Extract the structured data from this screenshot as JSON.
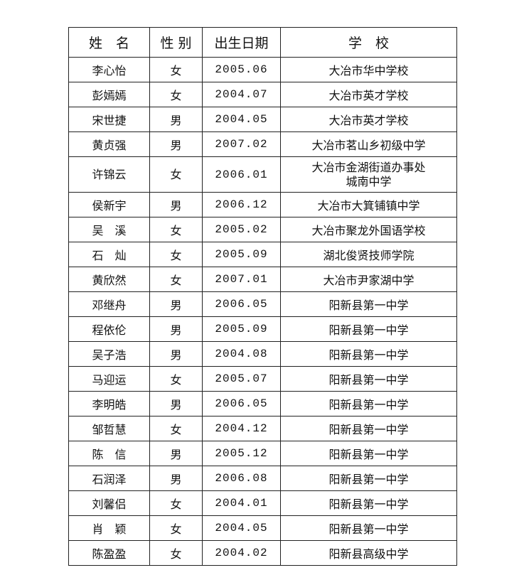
{
  "headers": [
    "姓　名",
    "性 别",
    "出生日期",
    "学　校"
  ],
  "rows": [
    {
      "name": "李心怡",
      "gender": "女",
      "birth": "2005.06",
      "school": "大冶市华中学校"
    },
    {
      "name": "彭嫣嫣",
      "gender": "女",
      "birth": "2004.07",
      "school": "大冶市英才学校"
    },
    {
      "name": "宋世捷",
      "gender": "男",
      "birth": "2004.05",
      "school": "大冶市英才学校"
    },
    {
      "name": "黄贞强",
      "gender": "男",
      "birth": "2007.02",
      "school": "大冶市茗山乡初级中学"
    },
    {
      "name": "许锦云",
      "gender": "女",
      "birth": "2006.01",
      "school": "大冶市金湖街道办事处",
      "school_line2": "城南中学"
    },
    {
      "name": "侯新宇",
      "gender": "男",
      "birth": "2006.12",
      "school": "大冶市大箕铺镇中学"
    },
    {
      "name": "吴　溪",
      "gender": "女",
      "birth": "2005.02",
      "school": "大冶市聚龙外国语学校"
    },
    {
      "name": "石　灿",
      "gender": "女",
      "birth": "2005.09",
      "school": "湖北俊贤技师学院"
    },
    {
      "name": "黄欣然",
      "gender": "女",
      "birth": "2007.01",
      "school": "大冶市尹家湖中学"
    },
    {
      "name": "邓继舟",
      "gender": "男",
      "birth": "2006.05",
      "school": "阳新县第一中学"
    },
    {
      "name": "程依伦",
      "gender": "男",
      "birth": "2005.09",
      "school": "阳新县第一中学"
    },
    {
      "name": "吴子浩",
      "gender": "男",
      "birth": "2004.08",
      "school": "阳新县第一中学"
    },
    {
      "name": "马迎运",
      "gender": "女",
      "birth": "2005.07",
      "school": "阳新县第一中学"
    },
    {
      "name": "李明皓",
      "gender": "男",
      "birth": "2006.05",
      "school": "阳新县第一中学"
    },
    {
      "name": "邹哲慧",
      "gender": "女",
      "birth": "2004.12",
      "school": "阳新县第一中学"
    },
    {
      "name": "陈　信",
      "gender": "男",
      "birth": "2005.12",
      "school": "阳新县第一中学"
    },
    {
      "name": "石润泽",
      "gender": "男",
      "birth": "2006.08",
      "school": "阳新县第一中学"
    },
    {
      "name": "刘馨侣",
      "gender": "女",
      "birth": "2004.01",
      "school": "阳新县第一中学"
    },
    {
      "name": "肖　颖",
      "gender": "女",
      "birth": "2004.05",
      "school": "阳新县第一中学"
    },
    {
      "name": "陈盈盈",
      "gender": "女",
      "birth": "2004.02",
      "school": "阳新县高级中学"
    }
  ]
}
